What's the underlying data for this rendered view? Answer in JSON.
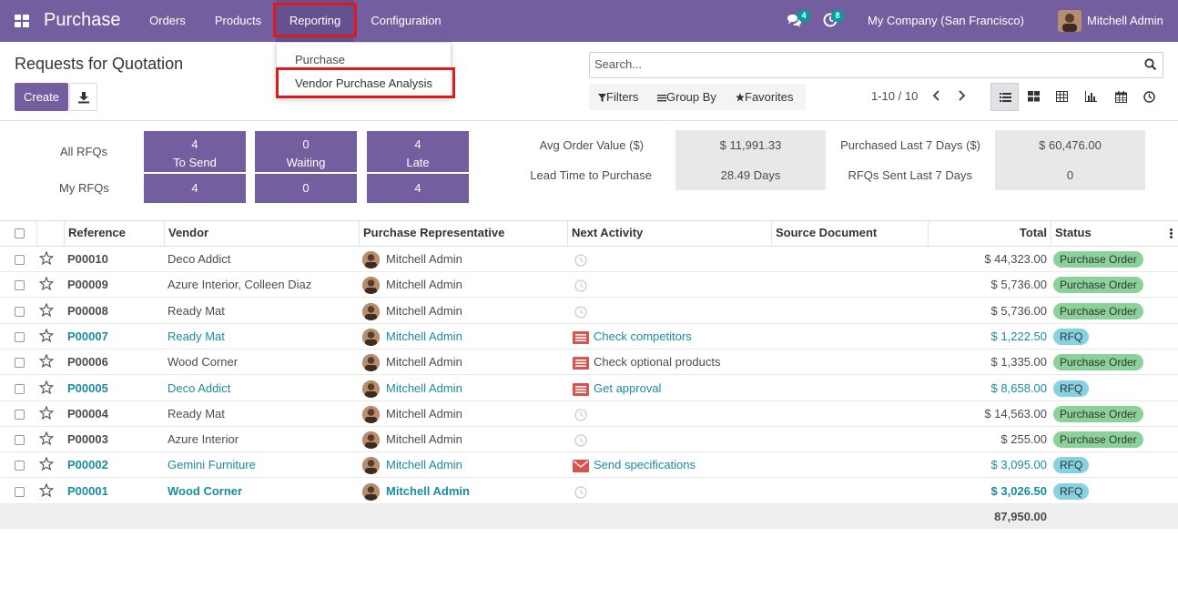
{
  "navbar": {
    "brand": "Purchase",
    "menus": [
      "Orders",
      "Products",
      "Reporting",
      "Configuration"
    ],
    "messages_badge": "4",
    "activities_badge": "8",
    "company": "My Company (San Francisco)",
    "user": "Mitchell Admin"
  },
  "reporting_dropdown": {
    "items": [
      "Purchase",
      "Vendor Purchase Analysis"
    ]
  },
  "control_panel": {
    "title": "Requests for Quotation",
    "create_label": "Create",
    "search_placeholder": "Search...",
    "filters_label": "Filters",
    "groupby_label": "Group By",
    "favorites_label": "Favorites",
    "pager": "1-10 / 10"
  },
  "dashboard": {
    "all_rfqs_label": "All RFQs",
    "my_rfqs_label": "My RFQs",
    "tiles": [
      {
        "all": "4",
        "label": "To Send",
        "my": "4"
      },
      {
        "all": "0",
        "label": "Waiting",
        "my": "0"
      },
      {
        "all": "4",
        "label": "Late",
        "my": "4"
      }
    ],
    "stats": {
      "avg_order_label": "Avg Order Value ($)",
      "avg_order_value": "$ 11,991.33",
      "purchased_label": "Purchased Last 7 Days ($)",
      "purchased_value": "$ 60,476.00",
      "lead_time_label": "Lead Time to Purchase",
      "lead_time_value": "28.49  Days",
      "rfqs_sent_label": "RFQs Sent Last 7 Days",
      "rfqs_sent_value": "0"
    }
  },
  "table": {
    "columns": [
      "Reference",
      "Vendor",
      "Purchase Representative",
      "Next Activity",
      "Source Document",
      "Total",
      "Status"
    ],
    "rows": [
      {
        "ref": "P00010",
        "vendor": "Deco Addict",
        "rep": "Mitchell Admin",
        "activity": "",
        "total": "$ 44,323.00",
        "status": "Purchase Order"
      },
      {
        "ref": "P00009",
        "vendor": "Azure Interior, Colleen Diaz",
        "rep": "Mitchell Admin",
        "activity": "",
        "total": "$ 5,736.00",
        "status": "Purchase Order"
      },
      {
        "ref": "P00008",
        "vendor": "Ready Mat",
        "rep": "Mitchell Admin",
        "activity": "",
        "total": "$ 5,736.00",
        "status": "Purchase Order"
      },
      {
        "ref": "P00007",
        "vendor": "Ready Mat",
        "rep": "Mitchell Admin",
        "activity": "Check competitors",
        "total": "$ 1,222.50",
        "status": "RFQ"
      },
      {
        "ref": "P00006",
        "vendor": "Wood Corner",
        "rep": "Mitchell Admin",
        "activity": "Check optional products",
        "total": "$ 1,335.00",
        "status": "Purchase Order"
      },
      {
        "ref": "P00005",
        "vendor": "Deco Addict",
        "rep": "Mitchell Admin",
        "activity": "Get approval",
        "total": "$ 8,658.00",
        "status": "RFQ"
      },
      {
        "ref": "P00004",
        "vendor": "Ready Mat",
        "rep": "Mitchell Admin",
        "activity": "",
        "total": "$ 14,563.00",
        "status": "Purchase Order"
      },
      {
        "ref": "P00003",
        "vendor": "Azure Interior",
        "rep": "Mitchell Admin",
        "activity": "",
        "total": "$ 255.00",
        "status": "Purchase Order"
      },
      {
        "ref": "P00002",
        "vendor": "Gemini Furniture",
        "rep": "Mitchell Admin",
        "activity": "Send specifications",
        "total": "$ 3,095.00",
        "status": "RFQ"
      },
      {
        "ref": "P00001",
        "vendor": "Wood Corner",
        "rep": "Mitchell Admin",
        "activity": "",
        "total": "$ 3,026.50",
        "status": "RFQ"
      }
    ],
    "footer_total": "87,950.00"
  },
  "colors": {
    "brand": "#735ea0",
    "highlight": "#e0191c",
    "link": "#1a8ba5",
    "status_po": "#8bd29a",
    "status_rfq": "#86d1e3"
  }
}
